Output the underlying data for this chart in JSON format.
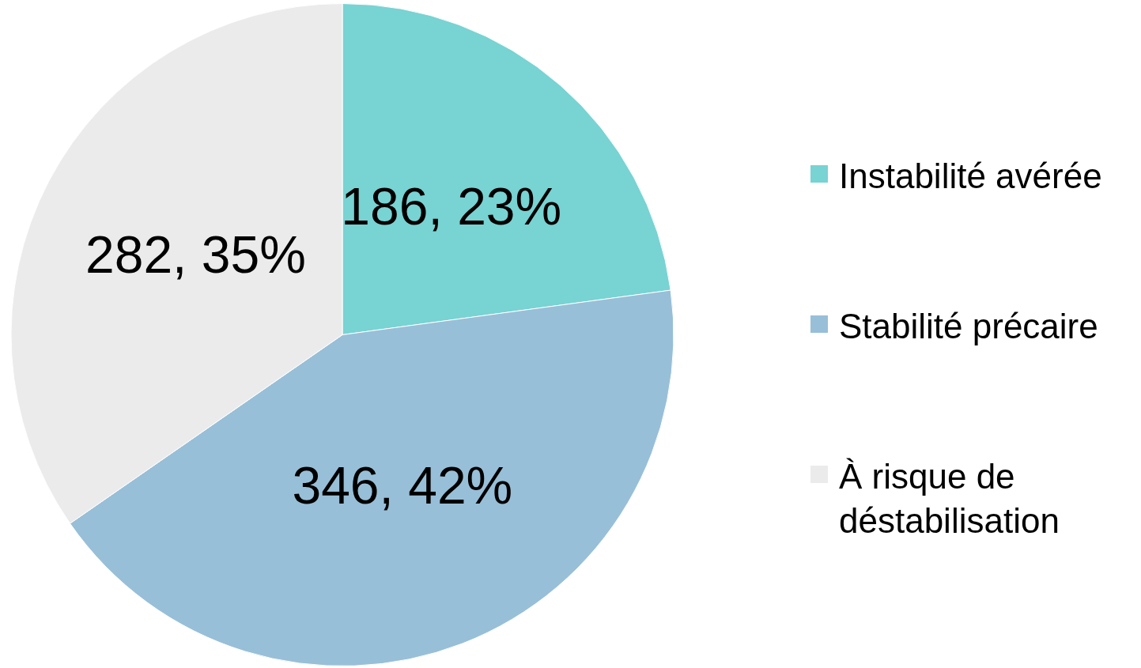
{
  "chart_data": {
    "type": "pie",
    "categories": [
      "Instabilité avérée",
      "Stabilité précaire",
      "À risque de déstabilisation"
    ],
    "values": [
      186,
      346,
      282
    ],
    "colors": [
      "#78d3d3",
      "#98bfd8",
      "#ebebeb"
    ],
    "value_labels": [
      "186, 23%",
      "346, 42%",
      "282, 35%"
    ],
    "legend": "right"
  }
}
